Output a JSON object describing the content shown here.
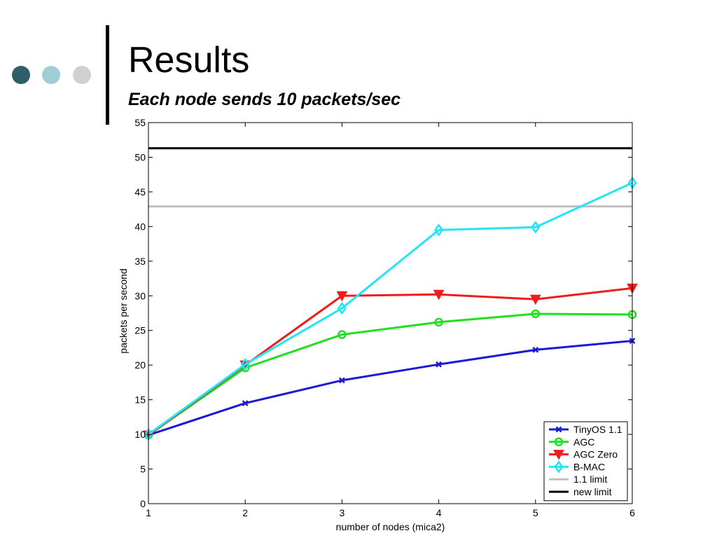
{
  "slide": {
    "title": "Results",
    "subtitle": "Each node sends 10 packets/sec",
    "bullet_colors": [
      "#2f5f66",
      "#9fcfd4",
      "#d0d0d0"
    ]
  },
  "chart_data": {
    "type": "line",
    "xlabel": "number of nodes (mica2)",
    "ylabel": "packets per second",
    "xlim": [
      1,
      6
    ],
    "ylim": [
      0,
      55
    ],
    "x_ticks": [
      1,
      2,
      3,
      4,
      5,
      6
    ],
    "y_ticks": [
      0,
      5,
      10,
      15,
      20,
      25,
      30,
      35,
      40,
      45,
      50,
      55
    ],
    "grid": false,
    "legend_position": "bottom-right",
    "x": [
      1,
      2,
      3,
      4,
      5,
      6
    ],
    "series": [
      {
        "name": "TinyOS 1.1",
        "color": "#1a1ad6",
        "marker": "x",
        "values": [
          9.9,
          14.5,
          17.8,
          20.1,
          22.2,
          23.5
        ]
      },
      {
        "name": "AGC",
        "color": "#1fe01f",
        "marker": "circle",
        "values": [
          9.9,
          19.6,
          24.4,
          26.2,
          27.4,
          27.3
        ]
      },
      {
        "name": "AGC Zero",
        "color": "#ee1c1c",
        "marker": "triangle-down",
        "values": [
          9.9,
          20.0,
          30.0,
          30.2,
          29.5,
          31.1
        ]
      },
      {
        "name": "B-MAC",
        "color": "#22e5f5",
        "marker": "diamond",
        "values": [
          10.0,
          20.1,
          28.2,
          39.5,
          39.9,
          46.3
        ]
      }
    ],
    "reference_lines": [
      {
        "name": "1.1 limit",
        "color": "#c0c0c0",
        "value": 42.9
      },
      {
        "name": "new limit",
        "color": "#000000",
        "value": 51.3
      }
    ]
  }
}
